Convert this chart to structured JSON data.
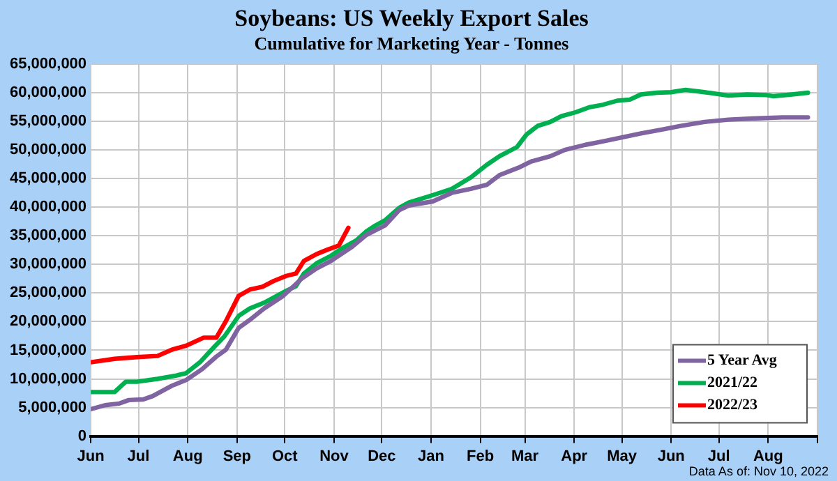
{
  "chart_data": {
    "type": "line",
    "title": "Soybeans: US Weekly Export Sales",
    "subtitle": "Cumulative for Marketing Year - Tonnes",
    "xlim": [
      "2022-06-01",
      "2023-09-01"
    ],
    "xticks": [
      {
        "value": "2022-06-01",
        "label": "Jun"
      },
      {
        "value": "2022-07-01",
        "label": "Jul"
      },
      {
        "value": "2022-08-01",
        "label": "Aug"
      },
      {
        "value": "2022-09-01",
        "label": "Sep"
      },
      {
        "value": "2022-10-01",
        "label": "Oct"
      },
      {
        "value": "2022-11-01",
        "label": "Nov"
      },
      {
        "value": "2022-12-01",
        "label": "Dec"
      },
      {
        "value": "2023-01-01",
        "label": "Jan"
      },
      {
        "value": "2023-02-01",
        "label": "Feb"
      },
      {
        "value": "2023-03-01",
        "label": "Mar"
      },
      {
        "value": "2023-04-01",
        "label": "Apr"
      },
      {
        "value": "2023-05-01",
        "label": "May"
      },
      {
        "value": "2023-06-01",
        "label": "Jun"
      },
      {
        "value": "2023-07-01",
        "label": "Jul"
      },
      {
        "value": "2023-08-01",
        "label": "Aug"
      },
      {
        "value": "2023-09-01",
        "label": null
      }
    ],
    "ylim": [
      0,
      65000000
    ],
    "yticks": [
      {
        "value": 0,
        "label": "0"
      },
      {
        "value": 5000000,
        "label": "5,000,000"
      },
      {
        "value": 10000000,
        "label": "10,000,000"
      },
      {
        "value": 15000000,
        "label": "15,000,000"
      },
      {
        "value": 20000000,
        "label": "20,000,000"
      },
      {
        "value": 25000000,
        "label": "25,000,000"
      },
      {
        "value": 30000000,
        "label": "30,000,000"
      },
      {
        "value": 35000000,
        "label": "35,000,000"
      },
      {
        "value": 40000000,
        "label": "40,000,000"
      },
      {
        "value": 45000000,
        "label": "45,000,000"
      },
      {
        "value": 50000000,
        "label": "50,000,000"
      },
      {
        "value": 55000000,
        "label": "55,000,000"
      },
      {
        "value": 60000000,
        "label": "60,000,000"
      },
      {
        "value": 65000000,
        "label": "65,000,000"
      }
    ],
    "grid": true,
    "legend": "bottom right",
    "marker": "none",
    "line_style": "solid",
    "annotations": [
      "Data As of: Nov 10, 2022"
    ],
    "series": [
      {
        "name": "5 Year Avg",
        "color": "#8064a2",
        "x": [
          "2022-06-01",
          "2022-06-10",
          "2022-06-19",
          "2022-06-25",
          "2022-07-04",
          "2022-07-10",
          "2022-07-22",
          "2022-07-31",
          "2022-08-10",
          "2022-08-19",
          "2022-08-25",
          "2022-09-02",
          "2022-09-09",
          "2022-09-18",
          "2022-09-30",
          "2022-10-12",
          "2022-10-21",
          "2022-10-30",
          "2022-11-12",
          "2022-11-21",
          "2022-12-03",
          "2022-12-12",
          "2022-12-18",
          "2023-01-02",
          "2023-01-14",
          "2023-01-26",
          "2023-02-05",
          "2023-02-13",
          "2023-02-25",
          "2023-03-05",
          "2023-03-17",
          "2023-03-26",
          "2023-04-08",
          "2023-04-19",
          "2023-05-01",
          "2023-05-13",
          "2023-05-25",
          "2023-06-07",
          "2023-06-22",
          "2023-07-07",
          "2023-07-22",
          "2023-08-10",
          "2023-08-26"
        ],
        "values": [
          4700000,
          5400000,
          5700000,
          6300000,
          6400000,
          7000000,
          8800000,
          9800000,
          11700000,
          13900000,
          15100000,
          18900000,
          20300000,
          22300000,
          24500000,
          27600000,
          29300000,
          30600000,
          33000000,
          35100000,
          36800000,
          39500000,
          40300000,
          41000000,
          42500000,
          43200000,
          43900000,
          45600000,
          46900000,
          48000000,
          48900000,
          50000000,
          50900000,
          51500000,
          52200000,
          52900000,
          53500000,
          54200000,
          54900000,
          55300000,
          55500000,
          55700000,
          55700000
        ]
      },
      {
        "name": "2021/22",
        "color": "#00b050",
        "x": [
          "2022-06-01",
          "2022-06-16",
          "2022-06-23",
          "2022-06-30",
          "2022-07-13",
          "2022-07-25",
          "2022-07-31",
          "2022-08-09",
          "2022-08-18",
          "2022-08-24",
          "2022-09-02",
          "2022-09-09",
          "2022-09-18",
          "2022-10-02",
          "2022-10-08",
          "2022-10-13",
          "2022-10-21",
          "2022-10-30",
          "2022-11-06",
          "2022-11-15",
          "2022-11-21",
          "2022-11-27",
          "2022-12-03",
          "2022-12-12",
          "2022-12-18",
          "2023-01-02",
          "2023-01-14",
          "2023-01-26",
          "2023-02-05",
          "2023-02-13",
          "2023-02-24",
          "2023-03-02",
          "2023-03-09",
          "2023-03-17",
          "2023-03-24",
          "2023-04-02",
          "2023-04-11",
          "2023-04-19",
          "2023-04-28",
          "2023-05-06",
          "2023-05-13",
          "2023-05-23",
          "2023-06-01",
          "2023-06-10",
          "2023-06-22",
          "2023-07-07",
          "2023-07-19",
          "2023-07-31",
          "2023-08-04",
          "2023-08-16",
          "2023-08-26"
        ],
        "values": [
          7700000,
          7700000,
          9500000,
          9500000,
          10000000,
          10600000,
          11000000,
          13000000,
          15700000,
          17400000,
          21000000,
          22300000,
          23300000,
          25400000,
          26200000,
          28400000,
          30200000,
          31500000,
          32800000,
          34200000,
          35700000,
          36800000,
          37700000,
          39900000,
          40800000,
          42100000,
          43200000,
          45200000,
          47400000,
          48900000,
          50500000,
          52700000,
          54200000,
          54900000,
          55900000,
          56600000,
          57500000,
          57900000,
          58600000,
          58800000,
          59700000,
          60000000,
          60100000,
          60500000,
          60100000,
          59500000,
          59700000,
          59600000,
          59400000,
          59700000,
          60000000
        ]
      },
      {
        "name": "2022/23",
        "color": "#ff0000",
        "x": [
          "2022-06-01",
          "2022-06-16",
          "2022-06-30",
          "2022-07-13",
          "2022-07-22",
          "2022-07-31",
          "2022-08-11",
          "2022-08-19",
          "2022-08-25",
          "2022-09-02",
          "2022-09-09",
          "2022-09-17",
          "2022-09-24",
          "2022-10-02",
          "2022-10-08",
          "2022-10-13",
          "2022-10-21",
          "2022-10-28",
          "2022-11-04",
          "2022-11-10"
        ],
        "values": [
          12900000,
          13500000,
          13800000,
          14000000,
          15100000,
          15800000,
          17200000,
          17200000,
          20100000,
          24500000,
          25600000,
          26100000,
          27100000,
          28000000,
          28400000,
          30600000,
          31800000,
          32600000,
          33300000,
          36400000
        ]
      }
    ]
  }
}
